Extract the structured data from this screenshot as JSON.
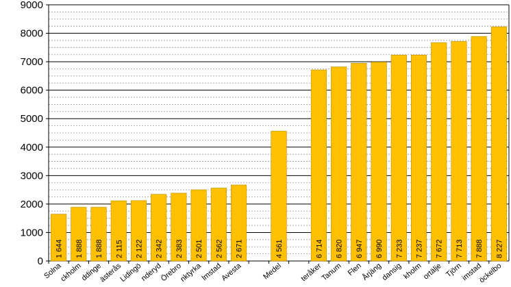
{
  "chart_data": {
    "type": "bar",
    "title": "",
    "xlabel": "",
    "ylabel": "",
    "ylim": [
      0,
      9000
    ],
    "yticks": [
      0,
      1000,
      2000,
      3000,
      4000,
      5000,
      6000,
      7000,
      8000,
      9000
    ],
    "ytick_labels": [
      "0",
      "1000",
      "2000",
      "3000",
      "4000",
      "5000",
      "6000",
      "7000",
      "8000",
      "9000"
    ],
    "minor_grid_step": 250,
    "grid": true,
    "bar_color": "#FFC000",
    "categories": [
      "Solna",
      "ckholm",
      "ddinge",
      "ästerås",
      "Lidingö",
      "nderyd",
      "Örebro",
      "nktyrka",
      "lmstad",
      "Avesta",
      "",
      "Medel",
      "",
      "teråker",
      "Tanum",
      "Flen",
      "Årjäng",
      "dansig",
      "kholm",
      "ortälje",
      "Tjörn",
      "imstad",
      "öckelbo"
    ],
    "values": [
      1644,
      1888,
      1888,
      2115,
      2122,
      2342,
      2383,
      2501,
      2562,
      2671,
      null,
      4561,
      null,
      6714,
      6820,
      6947,
      6990,
      7233,
      7237,
      7672,
      7713,
      7888,
      8227
    ],
    "value_labels": [
      "1 644",
      "1 888",
      "1 888",
      "2 115",
      "2 122",
      "2 342",
      "2 383",
      "2 501",
      "2 562",
      "2 671",
      "",
      "4 561",
      "",
      "6 714",
      "6 820",
      "6 947",
      "6 990",
      "7 233",
      "7 237",
      "7 672",
      "7 713",
      "7 888",
      "8 227"
    ]
  }
}
